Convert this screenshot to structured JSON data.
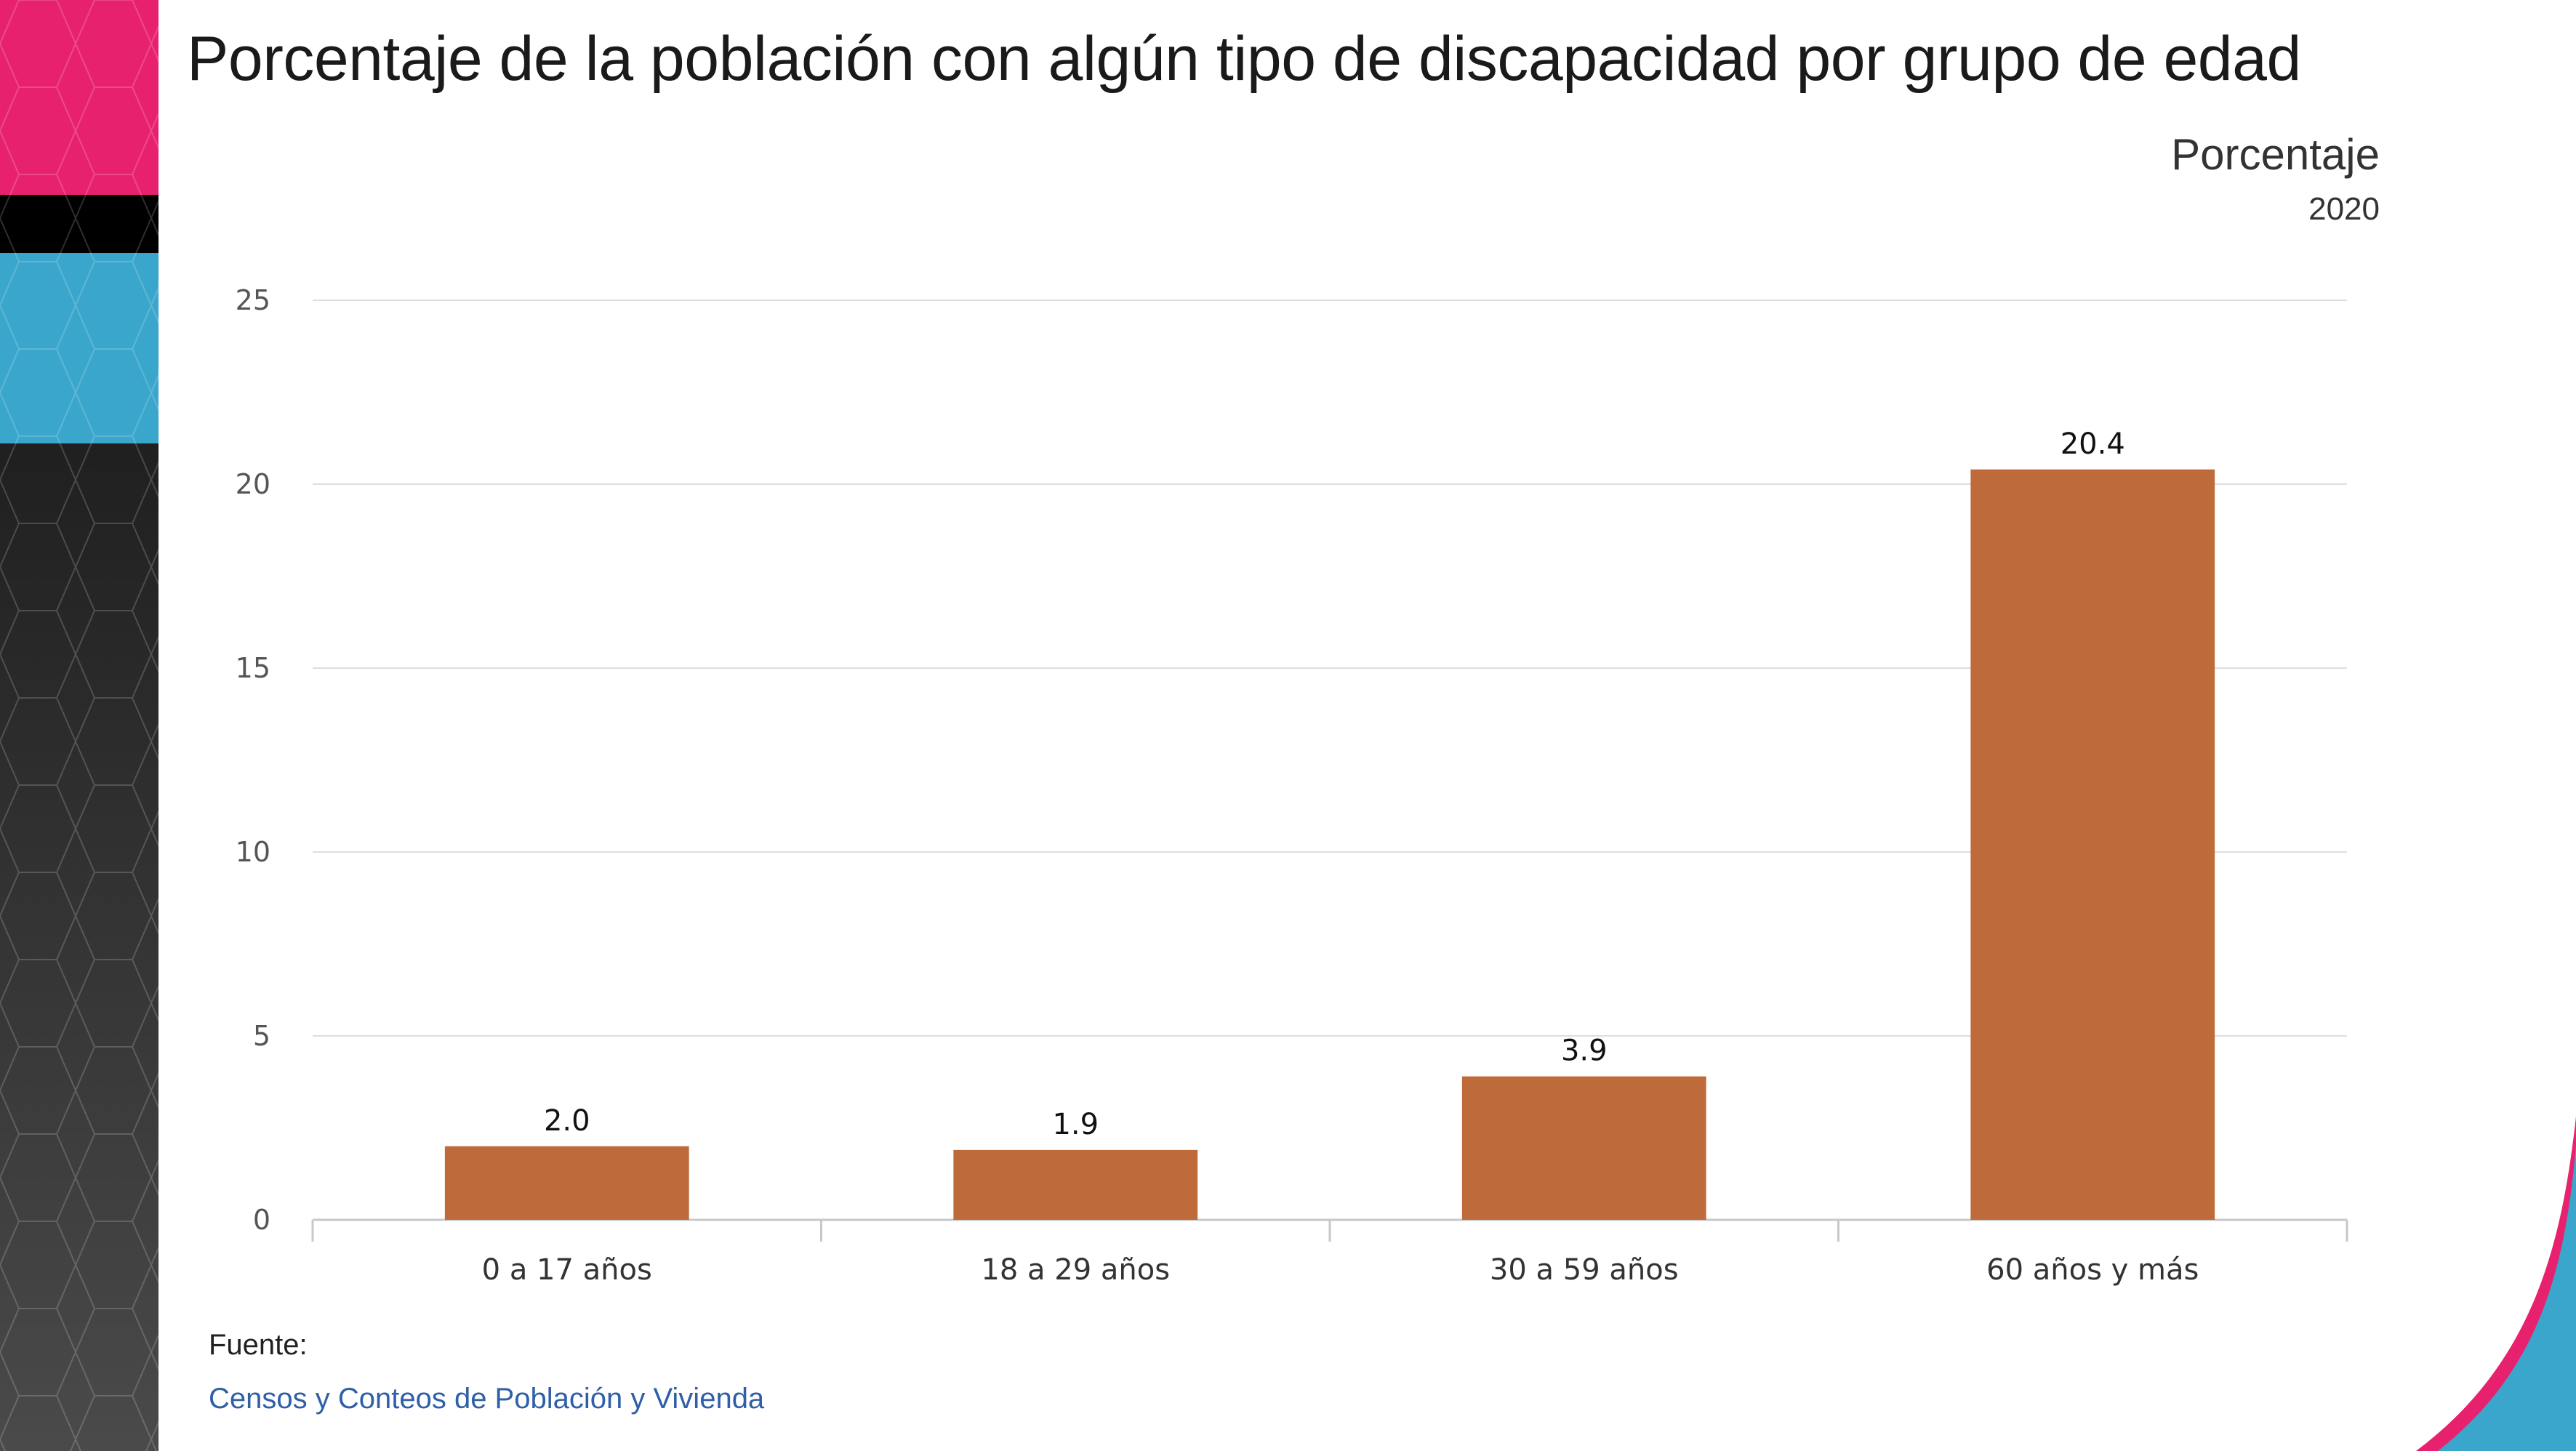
{
  "title": "Porcentaje de la población con algún tipo de discapacidad por grupo de edad",
  "unit_label": "Porcentaje",
  "year_label": "2020",
  "source": {
    "label": "Fuente:",
    "link_text": "Censos y Conteos de Población y Vivienda"
  },
  "colors": {
    "bar": "#bf6a3a",
    "grid": "#dedede",
    "axis": "#c8c8c8",
    "pink": "#e8216f",
    "cyan": "#3aa6cc",
    "dark": "#111111"
  },
  "chart_data": {
    "type": "bar",
    "title": "Porcentaje de la población con algún tipo de discapacidad por grupo de edad",
    "subtitle": "Porcentaje",
    "xlabel": "",
    "ylabel": "",
    "categories": [
      "0 a 17 años",
      "18 a 29 años",
      "30 a 59 años",
      "60 años y más"
    ],
    "values": [
      2.0,
      1.9,
      3.9,
      20.4
    ],
    "data_labels": [
      "2.0",
      "1.9",
      "3.9",
      "20.4"
    ],
    "ylim": [
      0,
      25
    ],
    "yticks": [
      0,
      5,
      10,
      15,
      20,
      25
    ],
    "grid": true,
    "legend": "none"
  }
}
